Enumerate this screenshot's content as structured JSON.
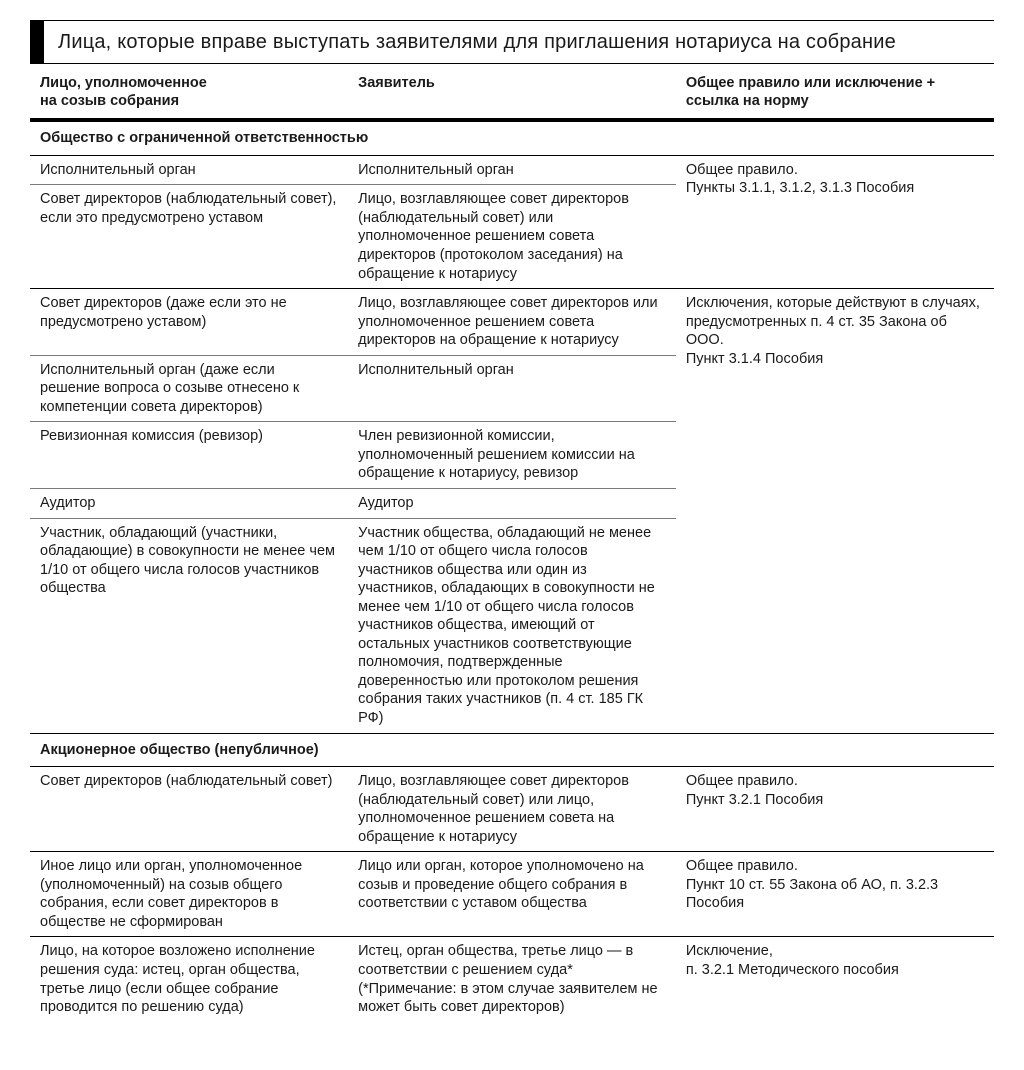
{
  "title": "Лица, которые вправе выступать заявителями для приглашения нотариуса на собрание",
  "headers": {
    "col1_l1": "Лицо, уполномоченное",
    "col1_l2": "на созыв собрания",
    "col2": "Заявитель",
    "col3_l1": "Общее правило или исключение +",
    "col3_l2": "ссылка на норму"
  },
  "section1": "Общество с ограниченной ответственностью",
  "s1r1c1": "Исполнительный орган",
  "s1r1c2": "Исполнительный орган",
  "s1g1c3_l1": "Общее правило.",
  "s1g1c3_l2": "Пункты 3.1.1, 3.1.2, 3.1.3 Пособия",
  "s1r2c1": "Совет директоров (наблюдательный совет), если это предусмотрено уставом",
  "s1r2c2": "Лицо, возглавляющее совет директоров (наблюдательный совет) или уполномоченное решением совета директоров (протоколом заседания) на обращение к нотариусу",
  "s1r3c1": "Совет директоров (даже если это не предусмотрено уставом)",
  "s1r3c2": "Лицо, возглавляющее совет директоров или уполномоченное решением совета директоров на обращение к нотариусу",
  "s1g2c3_l1": "Исключения, которые действуют в случаях, предусмотренных п. 4 ст. 35 Закона об ООО.",
  "s1g2c3_l2": "Пункт 3.1.4 Пособия",
  "s1r4c1": "Исполнительный орган (даже если решение вопроса о созыве отнесено к компетенции совета директоров)",
  "s1r4c2": "Исполнительный орган",
  "s1r5c1": "Ревизионная комиссия (ревизор)",
  "s1r5c2": "Член ревизионной комиссии, уполномоченный решением комиссии на обращение к нотариусу, ревизор",
  "s1r6c1": "Аудитор",
  "s1r6c2": "Аудитор",
  "s1r7c1": "Участник, обладающий (участники, обладающие) в совокупности не менее чем 1/10 от общего числа голосов участников общества",
  "s1r7c2": "Участник общества, обладающий не менее чем 1/10 от общего числа голосов участников общества или один из участников, обладающих в совокупности не менее чем 1/10 от общего числа голосов участников общества, имеющий от остальных участников соответствующие полномочия, подтвержденные доверенностью или протоколом решения собрания таких участников (п. 4 ст. 185 ГК РФ)",
  "section2": "Акционерное общество (непубличное)",
  "s2r1c1": "Совет директоров (наблюдательный совет)",
  "s2r1c2": "Лицо, возглавляющее совет директоров (наблюдательный совет) или лицо, уполномоченное решением совета на обращение к нотариусу",
  "s2r1c3_l1": "Общее правило.",
  "s2r1c3_l2": "Пункт 3.2.1 Пособия",
  "s2r2c1": "Иное лицо или орган, уполномоченное (уполномоченный) на созыв общего собрания, если совет директоров в обществе не сформирован",
  "s2r2c2": "Лицо или орган, которое уполномочено на созыв и проведение общего собрания в соответствии с уставом общества",
  "s2r2c3_l1": "Общее правило.",
  "s2r2c3_l2": "Пункт 10 ст. 55 Закона об АО, п. 3.2.3 Пособия",
  "s2r3c1": "Лицо, на которое возложено исполнение решения суда: истец, орган общества, третье лицо (если общее собрание проводится по решению суда)",
  "s2r3c2_l1": "Истец, орган общества, третье лицо — в соответствии с решением суда*",
  "s2r3c2_l2": "(*Примечание: в этом случае заявителем не может быть совет директоров)",
  "s2r3c3_l1": "Исключение,",
  "s2r3c3_l2": "п. 3.2.1 Методического пособия"
}
